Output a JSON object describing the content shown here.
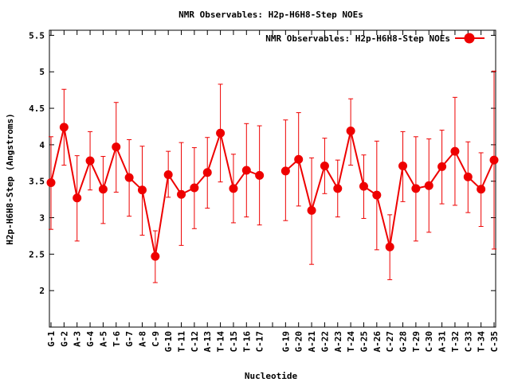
{
  "colors": {
    "series": "#ee0000",
    "axis": "#000000",
    "background": "#ffffff"
  },
  "chart_data": {
    "type": "line",
    "title": "NMR Observables: H2p-H6H8-Step NOEs",
    "xlabel": "Nucleotide",
    "ylabel": "H2p-H6H8-Step (Angstroms)",
    "ylim": [
      1.5,
      5.57
    ],
    "yticks": [
      2,
      2.5,
      3,
      3.5,
      4,
      4.5,
      5,
      5.5
    ],
    "grid": false,
    "legend_position": "top-right",
    "error_bars": true,
    "categories": [
      "G-1",
      "G-2",
      "A-3",
      "G-4",
      "A-5",
      "T-6",
      "G-7",
      "A-8",
      "C-9",
      "G-10",
      "T-11",
      "C-12",
      "A-13",
      "T-14",
      "C-15",
      "T-16",
      "C-17",
      "",
      "G-19",
      "G-20",
      "A-21",
      "G-22",
      "A-23",
      "T-24",
      "G-25",
      "A-26",
      "C-27",
      "G-28",
      "T-29",
      "C-30",
      "A-31",
      "T-32",
      "C-33",
      "T-34",
      "C-35"
    ],
    "series": [
      {
        "name": "NMR Observables: H2p-H6H8-Step NOEs",
        "values": [
          3.48,
          4.24,
          3.27,
          3.78,
          3.39,
          3.97,
          3.55,
          3.38,
          2.47,
          3.59,
          3.32,
          3.41,
          3.62,
          4.16,
          3.4,
          3.65,
          3.58,
          null,
          3.64,
          3.8,
          3.1,
          3.71,
          3.4,
          4.19,
          3.43,
          3.31,
          2.6,
          3.71,
          3.4,
          3.44,
          3.7,
          3.91,
          3.56,
          3.39,
          3.79
        ],
        "err_low": [
          2.84,
          3.72,
          2.68,
          3.38,
          2.92,
          3.35,
          3.02,
          2.76,
          2.11,
          3.28,
          2.62,
          2.85,
          3.13,
          3.49,
          2.93,
          3.01,
          2.9,
          null,
          2.96,
          3.16,
          2.36,
          3.33,
          3.01,
          3.72,
          2.99,
          2.56,
          2.15,
          3.22,
          2.68,
          2.8,
          3.19,
          3.17,
          3.07,
          2.88,
          2.57
        ],
        "err_high": [
          4.11,
          4.76,
          3.85,
          4.18,
          3.84,
          4.58,
          4.07,
          3.98,
          2.82,
          3.91,
          4.03,
          3.96,
          4.1,
          4.83,
          3.87,
          4.29,
          4.26,
          null,
          4.34,
          4.44,
          3.82,
          4.09,
          3.79,
          4.63,
          3.86,
          4.05,
          3.04,
          4.18,
          4.11,
          4.08,
          4.2,
          4.65,
          4.04,
          3.89,
          5.01
        ]
      }
    ]
  }
}
